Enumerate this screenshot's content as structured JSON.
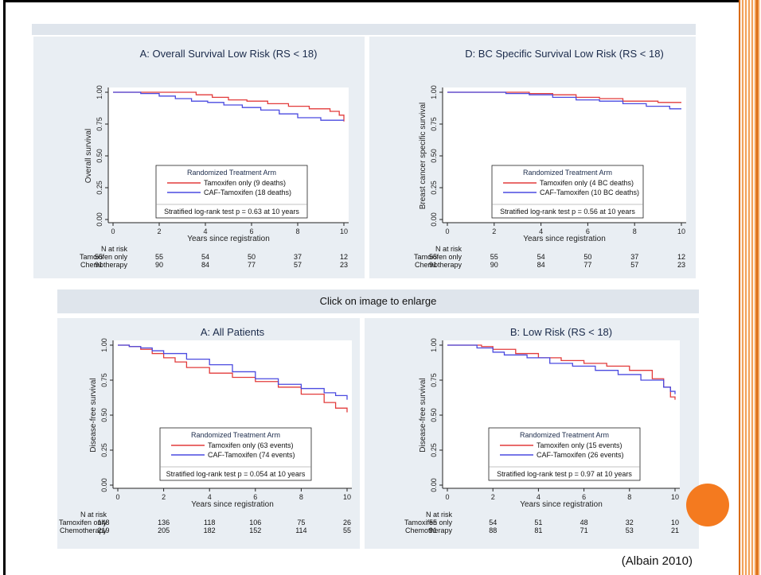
{
  "top_strip_text": "",
  "caption": "Click on image to enlarge",
  "citation": "(Albain 2010)",
  "colors": {
    "tamoxifen": "#e23b3b",
    "caf": "#4a4ae0",
    "panel_bg": "#e9eef3",
    "accent": "#f47a1f"
  },
  "chart_data": [
    {
      "type": "line",
      "title": "A:  Overall Survival Low Risk (RS < 18)",
      "xlabel": "Years since registration",
      "ylabel": "Overall survival",
      "xlim": [
        0,
        10
      ],
      "ylim": [
        0,
        1
      ],
      "x_ticks": [
        "0",
        "2",
        "4",
        "6",
        "8",
        "10"
      ],
      "y_ticks": [
        "0.00",
        "0.25",
        "0.50",
        "0.75",
        "1.00"
      ],
      "legend_title": "Randomized Treatment Arm",
      "series": [
        {
          "name": "Tamoxifen only  (9 deaths)",
          "color": "#e23b3b",
          "x": [
            0,
            3,
            3.6,
            4.3,
            5.0,
            5.8,
            6.7,
            7.6,
            8.5,
            9.4,
            9.8,
            10
          ],
          "y": [
            1.0,
            1.0,
            0.98,
            0.96,
            0.94,
            0.93,
            0.91,
            0.89,
            0.87,
            0.85,
            0.82,
            0.77
          ]
        },
        {
          "name": "CAF-Tamoxifen (18 deaths)",
          "color": "#4a4ae0",
          "x": [
            0,
            1.2,
            2.0,
            2.7,
            3.4,
            4.1,
            4.8,
            5.6,
            6.4,
            7.2,
            8.0,
            9.0,
            10
          ],
          "y": [
            1.0,
            0.99,
            0.97,
            0.95,
            0.93,
            0.92,
            0.9,
            0.88,
            0.86,
            0.83,
            0.8,
            0.78,
            0.78
          ]
        }
      ],
      "annotation": "Stratified log-rank test p = 0.63 at 10 years",
      "risk_table": {
        "header": "N at risk",
        "rows": [
          {
            "label": "Tamoxifen only",
            "values": [
              "55",
              "55",
              "54",
              "50",
              "37",
              "12"
            ]
          },
          {
            "label": "Chemotherapy",
            "values": [
              "91",
              "90",
              "84",
              "77",
              "57",
              "23"
            ]
          }
        ]
      }
    },
    {
      "type": "line",
      "title": "D:  BC Specific Survival Low Risk (RS < 18)",
      "xlabel": "Years since registration",
      "ylabel": "Breast cancer specific survival",
      "xlim": [
        0,
        10
      ],
      "ylim": [
        0,
        1
      ],
      "x_ticks": [
        "0",
        "2",
        "4",
        "6",
        "8",
        "10"
      ],
      "y_ticks": [
        "0.00",
        "0.25",
        "0.50",
        "0.75",
        "1.00"
      ],
      "legend_title": "Randomized Treatment Arm",
      "series": [
        {
          "name": "Tamoxifen only  (4 BC deaths)",
          "color": "#e23b3b",
          "x": [
            0,
            3.5,
            4.5,
            5.5,
            6.5,
            7.5,
            9,
            10
          ],
          "y": [
            1.0,
            0.99,
            0.98,
            0.96,
            0.95,
            0.93,
            0.92,
            0.92
          ]
        },
        {
          "name": "CAF-Tamoxifen (10 BC deaths)",
          "color": "#4a4ae0",
          "x": [
            0,
            2.5,
            3.5,
            4.5,
            5.5,
            6.5,
            7.5,
            8.5,
            9.5,
            10
          ],
          "y": [
            1.0,
            0.99,
            0.98,
            0.96,
            0.94,
            0.93,
            0.91,
            0.89,
            0.87,
            0.87
          ]
        }
      ],
      "annotation": "Stratified log-rank test p = 0.56 at 10 years",
      "risk_table": {
        "header": "N at risk",
        "rows": [
          {
            "label": "Tamoxifen only",
            "values": [
              "55",
              "55",
              "54",
              "50",
              "37",
              "12"
            ]
          },
          {
            "label": "Chemotherapy",
            "values": [
              "91",
              "90",
              "84",
              "77",
              "57",
              "23"
            ]
          }
        ]
      }
    },
    {
      "type": "line",
      "title": "A:  All Patients",
      "xlabel": "Years since registration",
      "ylabel": "Disease-free survival",
      "xlim": [
        0,
        10
      ],
      "ylim": [
        0,
        1
      ],
      "x_ticks": [
        "0",
        "2",
        "4",
        "6",
        "8",
        "10"
      ],
      "y_ticks": [
        "0.00",
        "0.25",
        "0.50",
        "0.75",
        "1.00"
      ],
      "legend_title": "Randomized Treatment Arm",
      "series": [
        {
          "name": "Tamoxifen only  (63 events)",
          "color": "#e23b3b",
          "x": [
            0,
            0.5,
            1,
            1.5,
            2,
            2.5,
            3,
            4,
            5,
            6,
            7,
            8,
            9,
            9.5,
            10
          ],
          "y": [
            1.0,
            0.99,
            0.97,
            0.94,
            0.91,
            0.88,
            0.84,
            0.8,
            0.77,
            0.74,
            0.7,
            0.65,
            0.59,
            0.55,
            0.52
          ]
        },
        {
          "name": "CAF-Tamoxifen (74 events)",
          "color": "#4a4ae0",
          "x": [
            0,
            0.5,
            1,
            1.5,
            2,
            3,
            4,
            5,
            6,
            7,
            8,
            9,
            9.5,
            10
          ],
          "y": [
            1.0,
            0.99,
            0.98,
            0.96,
            0.94,
            0.9,
            0.86,
            0.81,
            0.76,
            0.72,
            0.69,
            0.66,
            0.64,
            0.61
          ]
        }
      ],
      "annotation": "Stratified log-rank test p = 0.054 at 10 years",
      "risk_table": {
        "header": "N at risk",
        "rows": [
          {
            "label": "Tamoxifen only",
            "values": [
              "148",
              "136",
              "118",
              "106",
              "75",
              "26"
            ]
          },
          {
            "label": "Chemotherapy",
            "values": [
              "219",
              "205",
              "182",
              "152",
              "114",
              "55"
            ]
          }
        ]
      }
    },
    {
      "type": "line",
      "title": "B:  Low Risk (RS < 18)",
      "xlabel": "Years since registration",
      "ylabel": "Disease-free survival",
      "xlim": [
        0,
        10
      ],
      "ylim": [
        0,
        1
      ],
      "x_ticks": [
        "0",
        "2",
        "4",
        "6",
        "8",
        "10"
      ],
      "y_ticks": [
        "0.00",
        "0.25",
        "0.50",
        "0.75",
        "1.00"
      ],
      "legend_title": "Randomized Treatment Arm",
      "series": [
        {
          "name": "Tamoxifen only  (15 events)",
          "color": "#e23b3b",
          "x": [
            0,
            1.5,
            2,
            3,
            4,
            5,
            6,
            7,
            8,
            9,
            9.5,
            9.8,
            10
          ],
          "y": [
            1.0,
            0.99,
            0.97,
            0.94,
            0.91,
            0.89,
            0.87,
            0.85,
            0.82,
            0.76,
            0.7,
            0.63,
            0.61
          ]
        },
        {
          "name": "CAF-Tamoxifen (26 events)",
          "color": "#4a4ae0",
          "x": [
            0,
            1.3,
            2,
            2.5,
            3.5,
            4.5,
            5.5,
            6.5,
            7.5,
            8.5,
            9.5,
            9.8,
            10
          ],
          "y": [
            1.0,
            0.98,
            0.95,
            0.93,
            0.91,
            0.87,
            0.85,
            0.82,
            0.79,
            0.75,
            0.7,
            0.67,
            0.65
          ]
        }
      ],
      "annotation": "Stratified log-rank test p = 0.97 at 10 years",
      "risk_table": {
        "header": "N at risk",
        "rows": [
          {
            "label": "Tamoxifen only",
            "values": [
              "55",
              "54",
              "51",
              "48",
              "32",
              "10"
            ]
          },
          {
            "label": "Chemotherapy",
            "values": [
              "91",
              "88",
              "81",
              "71",
              "53",
              "21"
            ]
          }
        ]
      }
    }
  ]
}
